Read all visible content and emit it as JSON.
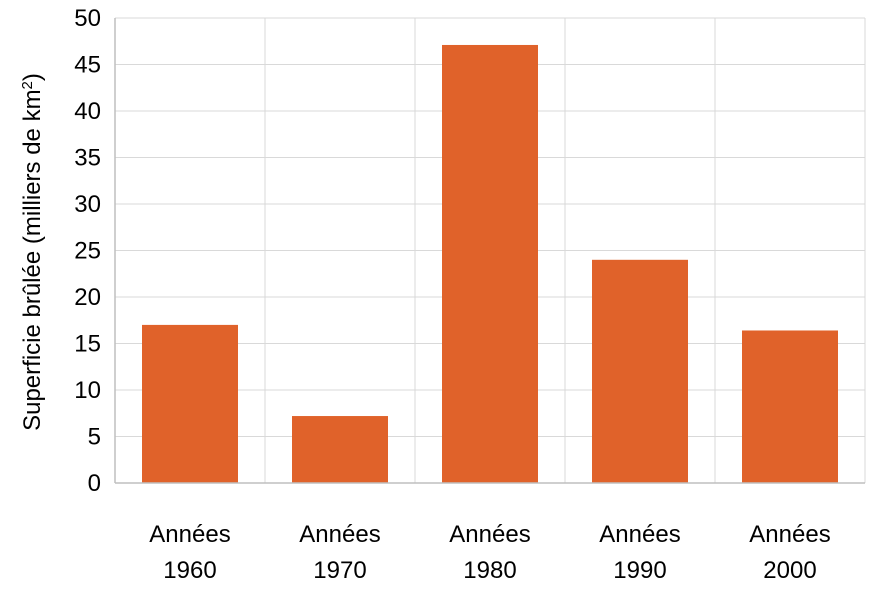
{
  "chart_data": {
    "type": "bar",
    "categories": [
      [
        "Années",
        "1960"
      ],
      [
        "Années",
        "1970"
      ],
      [
        "Années",
        "1980"
      ],
      [
        "Années",
        "1990"
      ],
      [
        "Années",
        "2000"
      ]
    ],
    "values": [
      17.0,
      7.2,
      47.1,
      24.0,
      16.4
    ],
    "ylabel": {
      "text": "Superficie brûlée (milliers de km",
      "superscript": "2",
      "suffix": ")"
    },
    "ylim": [
      0,
      50
    ],
    "yticks": [
      "0",
      "5",
      "10",
      "15",
      "20",
      "25",
      "30",
      "35",
      "40",
      "45",
      "50"
    ],
    "grid": true,
    "bar_color": "#E0622A",
    "grid_color": "#D9D9D9",
    "axis_color": "#BFBFBF"
  }
}
